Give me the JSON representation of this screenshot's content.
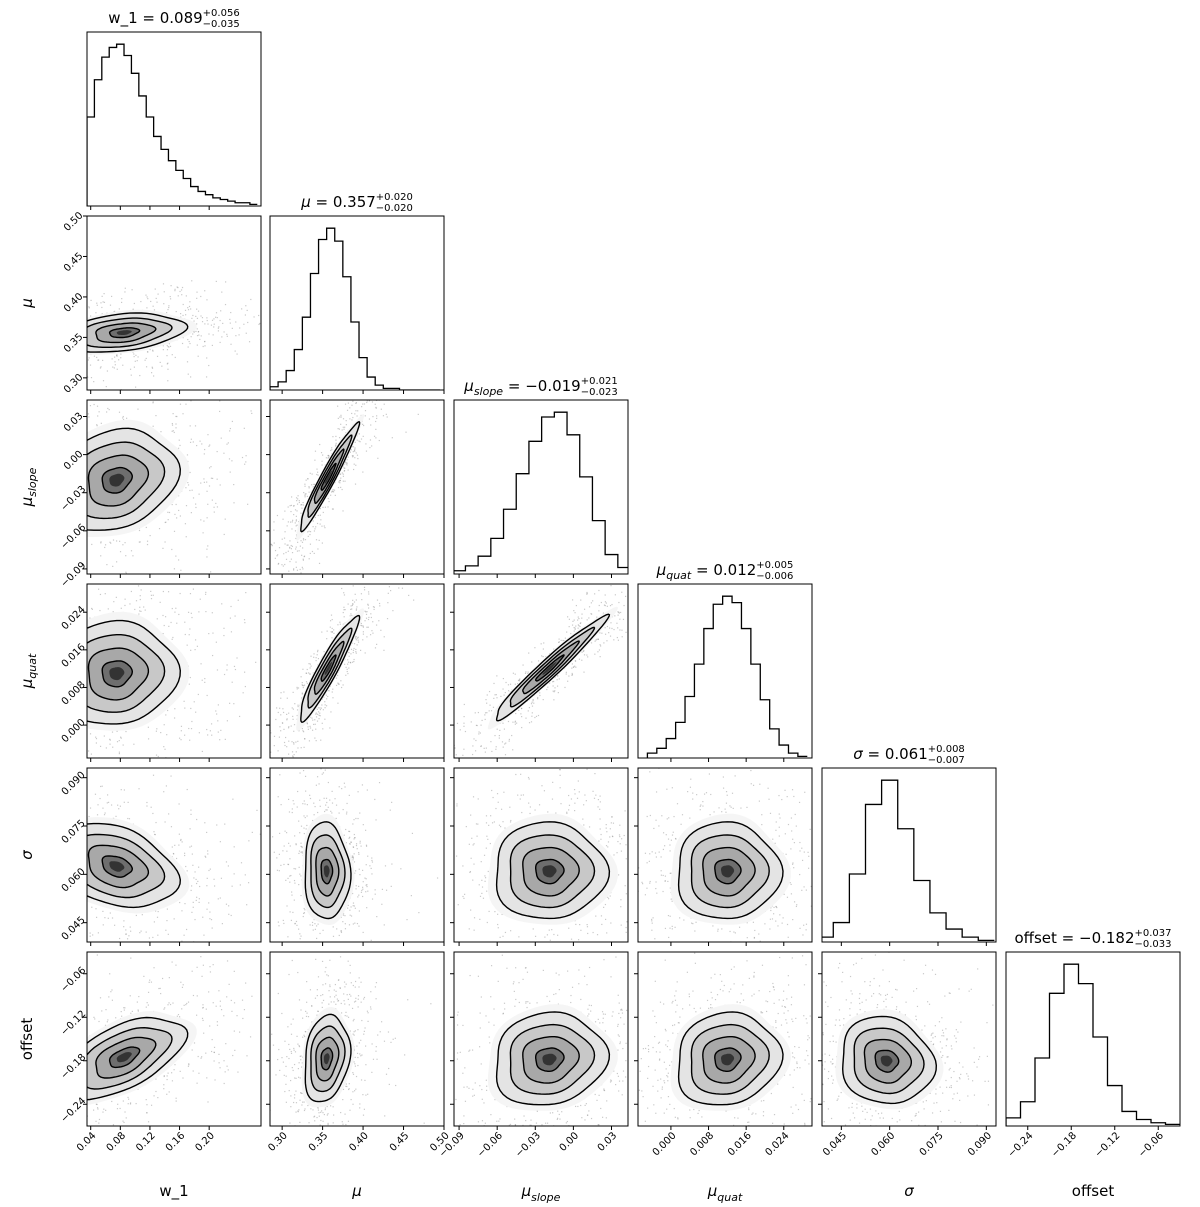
{
  "chart_data": {
    "type": "corner",
    "parameters": [
      {
        "id": "w1",
        "label": "w_1",
        "label_sub": "",
        "italic": false,
        "range": [
          0.035,
          0.27
        ],
        "ticks": [
          0.04,
          0.08,
          0.12,
          0.16,
          0.2
        ],
        "tick_labels": [
          "0.04",
          "0.08",
          "0.12",
          "0.16",
          "0.20"
        ],
        "title": {
          "name": "w_1",
          "name_sub": "",
          "italic": false,
          "median": "0.089",
          "plus": "+0.056",
          "minus": "−0.035"
        }
      },
      {
        "id": "mu",
        "label": "μ",
        "label_sub": "",
        "italic": true,
        "range": [
          0.285,
          0.5
        ],
        "ticks": [
          0.3,
          0.35,
          0.4,
          0.45,
          0.5
        ],
        "tick_labels": [
          "0.30",
          "0.35",
          "0.40",
          "0.45",
          "0.50"
        ],
        "title": {
          "name": "μ",
          "name_sub": "",
          "italic": true,
          "median": "0.357",
          "plus": "+0.020",
          "minus": "−0.020"
        }
      },
      {
        "id": "muslope",
        "label": "μ",
        "label_sub": "slope",
        "italic": true,
        "range": [
          -0.094,
          0.043
        ],
        "ticks": [
          -0.09,
          -0.06,
          -0.03,
          0.0,
          0.03
        ],
        "tick_labels": [
          "−0.09",
          "−0.06",
          "−0.03",
          "0.00",
          "0.03"
        ],
        "title": {
          "name": "μ",
          "name_sub": "slope",
          "italic": true,
          "median": "−0.019",
          "plus": "+0.021",
          "minus": "−0.023"
        }
      },
      {
        "id": "muquat",
        "label": "μ",
        "label_sub": "quat",
        "italic": true,
        "range": [
          -0.007,
          0.03
        ],
        "ticks": [
          0.0,
          0.008,
          0.016,
          0.024
        ],
        "tick_labels": [
          "0.000",
          "0.008",
          "0.016",
          "0.024"
        ],
        "title": {
          "name": "μ",
          "name_sub": "quat",
          "italic": true,
          "median": "0.012",
          "plus": "+0.005",
          "minus": "−0.006"
        }
      },
      {
        "id": "sigma",
        "label": "σ",
        "label_sub": "",
        "italic": true,
        "range": [
          0.039,
          0.093
        ],
        "ticks": [
          0.045,
          0.06,
          0.075,
          0.09
        ],
        "tick_labels": [
          "0.045",
          "0.060",
          "0.075",
          "0.090"
        ],
        "title": {
          "name": "σ",
          "name_sub": "",
          "italic": true,
          "median": "0.061",
          "plus": "+0.008",
          "minus": "−0.007"
        }
      },
      {
        "id": "offset",
        "label": "offset",
        "label_sub": "",
        "italic": false,
        "range": [
          -0.27,
          -0.03
        ],
        "ticks": [
          -0.24,
          -0.18,
          -0.12,
          -0.06
        ],
        "tick_labels": [
          "−0.24",
          "−0.18",
          "−0.12",
          "−0.06"
        ],
        "title": {
          "name": "offset",
          "name_sub": "",
          "italic": false,
          "median": "−0.182",
          "plus": "+0.037",
          "minus": "−0.033"
        }
      }
    ],
    "histograms": {
      "w1": {
        "x": [
          0.04,
          0.05,
          0.06,
          0.07,
          0.08,
          0.09,
          0.1,
          0.11,
          0.12,
          0.13,
          0.14,
          0.15,
          0.16,
          0.17,
          0.18,
          0.19,
          0.2,
          0.21,
          0.22,
          0.23,
          0.24,
          0.25,
          0.26
        ],
        "y": [
          0.55,
          0.78,
          0.92,
          0.98,
          1.0,
          0.93,
          0.82,
          0.68,
          0.55,
          0.43,
          0.35,
          0.28,
          0.22,
          0.17,
          0.12,
          0.09,
          0.07,
          0.05,
          0.04,
          0.03,
          0.02,
          0.02,
          0.01
        ]
      },
      "mu": {
        "x": [
          0.29,
          0.3,
          0.31,
          0.32,
          0.33,
          0.34,
          0.35,
          0.36,
          0.37,
          0.38,
          0.39,
          0.4,
          0.41,
          0.42,
          0.43,
          0.44,
          0.45,
          0.46,
          0.47,
          0.48,
          0.49
        ],
        "y": [
          0.02,
          0.05,
          0.12,
          0.25,
          0.45,
          0.72,
          0.93,
          1.0,
          0.92,
          0.7,
          0.42,
          0.2,
          0.08,
          0.03,
          0.01,
          0.01,
          0.0,
          0.0,
          0.0,
          0.0,
          0.0
        ]
      },
      "muslope": {
        "x": [
          -0.09,
          -0.08,
          -0.07,
          -0.06,
          -0.05,
          -0.04,
          -0.03,
          -0.02,
          -0.01,
          0.0,
          0.01,
          0.02,
          0.03,
          0.04
        ],
        "y": [
          0.02,
          0.05,
          0.11,
          0.22,
          0.4,
          0.62,
          0.82,
          0.97,
          1.0,
          0.86,
          0.6,
          0.33,
          0.12,
          0.04
        ]
      },
      "muquat": {
        "x": [
          -0.004,
          -0.002,
          0.0,
          0.002,
          0.004,
          0.006,
          0.008,
          0.01,
          0.012,
          0.014,
          0.016,
          0.018,
          0.02,
          0.022,
          0.024,
          0.026,
          0.028
        ],
        "y": [
          0.03,
          0.06,
          0.12,
          0.22,
          0.38,
          0.58,
          0.8,
          0.95,
          1.0,
          0.96,
          0.8,
          0.58,
          0.36,
          0.18,
          0.08,
          0.03,
          0.01
        ]
      },
      "sigma": {
        "x": [
          0.04,
          0.045,
          0.05,
          0.055,
          0.06,
          0.065,
          0.07,
          0.075,
          0.08,
          0.085,
          0.09
        ],
        "y": [
          0.03,
          0.12,
          0.42,
          0.85,
          1.0,
          0.7,
          0.38,
          0.18,
          0.08,
          0.03,
          0.01
        ]
      },
      "offset": {
        "x": [
          -0.26,
          -0.24,
          -0.22,
          -0.2,
          -0.18,
          -0.16,
          -0.14,
          -0.12,
          -0.1,
          -0.08,
          -0.06,
          -0.04
        ],
        "y": [
          0.05,
          0.15,
          0.42,
          0.82,
          1.0,
          0.88,
          0.55,
          0.25,
          0.09,
          0.04,
          0.02,
          0.01
        ]
      }
    },
    "joint": {
      "w1|mu": {
        "mean": [
          0.085,
          0.356
        ],
        "sd": [
          0.04,
          0.012
        ],
        "rho": 0.3
      },
      "w1|muslope": {
        "mean": [
          0.075,
          -0.02
        ],
        "sd": [
          0.04,
          0.02
        ],
        "rho": 0.2
      },
      "w1|muquat": {
        "mean": [
          0.075,
          0.011
        ],
        "sd": [
          0.04,
          0.0055
        ],
        "rho": 0.05
      },
      "w1|sigma": {
        "mean": [
          0.075,
          0.0625
        ],
        "sd": [
          0.04,
          0.0065
        ],
        "rho": -0.3
      },
      "w1|offset": {
        "mean": [
          0.085,
          -0.175
        ],
        "sd": [
          0.04,
          0.028
        ],
        "rho": 0.55
      },
      "mu|muslope": {
        "mean": [
          0.357,
          -0.018
        ],
        "sd": [
          0.018,
          0.021
        ],
        "rho": 0.96
      },
      "mu|muquat": {
        "mean": [
          0.357,
          0.012
        ],
        "sd": [
          0.018,
          0.0055
        ],
        "rho": 0.93
      },
      "mu|sigma": {
        "mean": [
          0.355,
          0.061
        ],
        "sd": [
          0.014,
          0.0075
        ],
        "rho": -0.05
      },
      "mu|offset": {
        "mean": [
          0.355,
          -0.177
        ],
        "sd": [
          0.014,
          0.03
        ],
        "rho": 0.2
      },
      "muslope|muquat": {
        "mean": [
          -0.019,
          0.012
        ],
        "sd": [
          0.022,
          0.0055
        ],
        "rho": 0.97
      },
      "muslope|sigma": {
        "mean": [
          -0.019,
          0.061
        ],
        "sd": [
          0.022,
          0.0075
        ],
        "rho": 0.0
      },
      "muslope|offset": {
        "mean": [
          -0.019,
          -0.178
        ],
        "sd": [
          0.022,
          0.032
        ],
        "rho": 0.1
      },
      "muquat|sigma": {
        "mean": [
          0.012,
          0.061
        ],
        "sd": [
          0.0055,
          0.0075
        ],
        "rho": 0.0
      },
      "muquat|offset": {
        "mean": [
          0.012,
          -0.178
        ],
        "sd": [
          0.0055,
          0.032
        ],
        "rho": 0.1
      },
      "sigma|offset": {
        "mean": [
          0.059,
          -0.18
        ],
        "sd": [
          0.0072,
          0.03
        ],
        "rho": -0.1
      }
    },
    "contour_levels_sigma": [
      0.5,
      1.0,
      1.5,
      2.0
    ]
  }
}
